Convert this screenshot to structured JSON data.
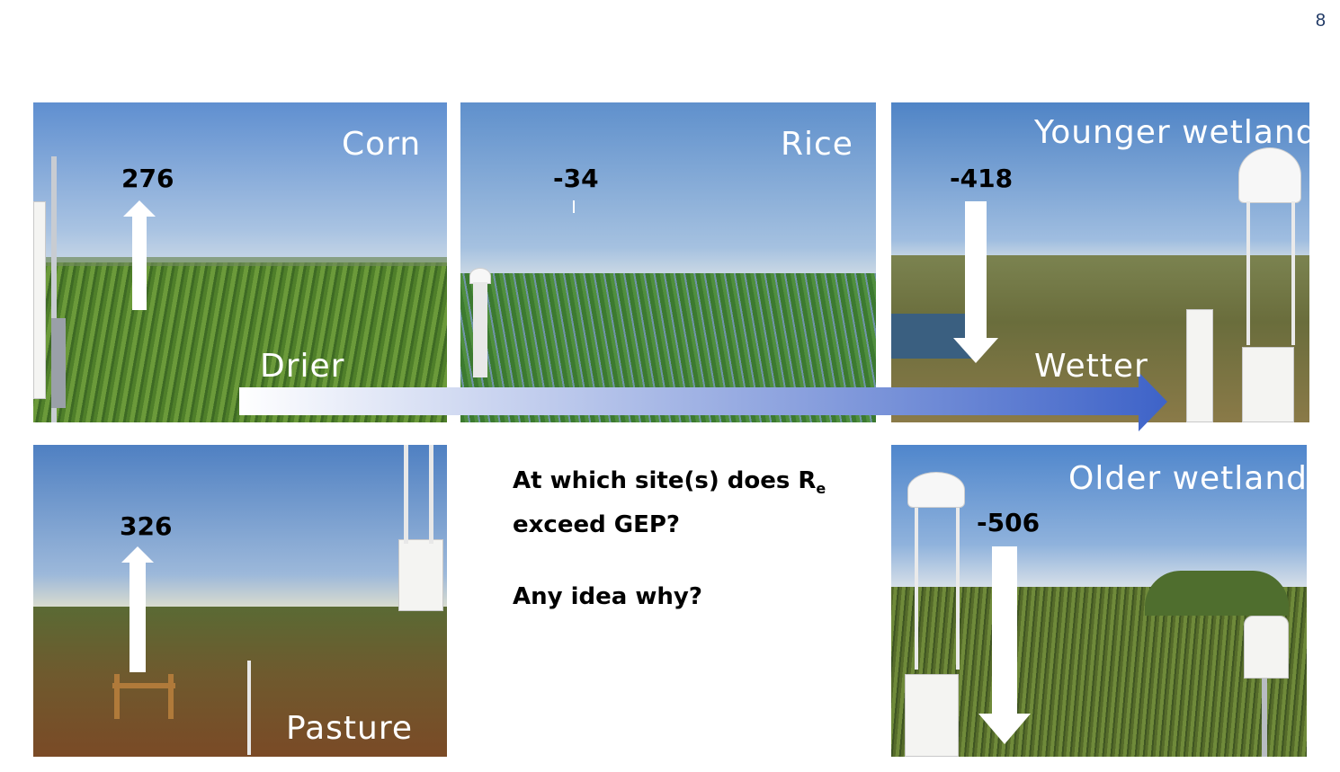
{
  "page_number": "8",
  "sites": {
    "corn": {
      "label": "Corn",
      "value": "276"
    },
    "rice": {
      "label": "Rice",
      "value": "-34"
    },
    "younger_wetland": {
      "label": "Younger wetland",
      "value": "-418"
    },
    "pasture": {
      "label": "Pasture",
      "value": "326"
    },
    "older_wetland": {
      "label": "Older wetland",
      "value": "-506"
    }
  },
  "gradient": {
    "start_label": "Drier",
    "end_label": "Wetter"
  },
  "question": {
    "line1_prefix": "At which site(s) does R",
    "line1_sub": "e",
    "line2": "exceed GEP?",
    "line3": "Any idea why?"
  }
}
